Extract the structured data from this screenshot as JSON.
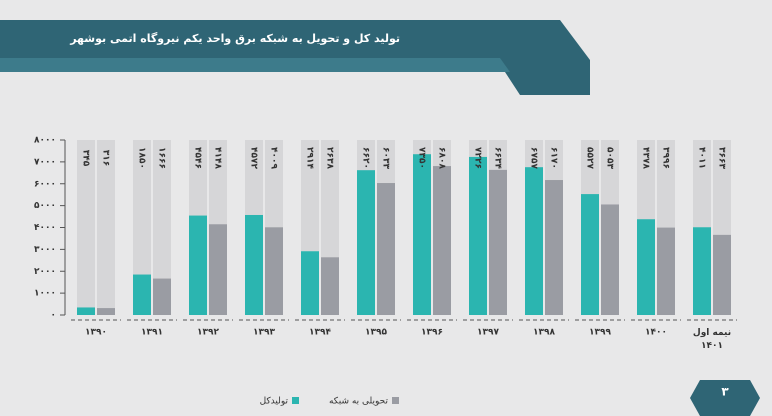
{
  "chart_data": {
    "type": "bar",
    "title": "تولید کل و تحویل به شبکه برق واحد یکم نیروگاه اتمی بوشهر",
    "page_number": "۳",
    "categories": [
      "۱۳۹۰",
      "۱۳۹۱",
      "۱۳۹۲",
      "۱۳۹۳",
      "۱۳۹۴",
      "۱۳۹۵",
      "۱۳۹۶",
      "۱۳۹۷",
      "۱۳۹۸",
      "۱۳۹۹",
      "۱۴۰۰",
      "نیمه اول ۱۴۰۱"
    ],
    "series": [
      {
        "name": "تولیدکل",
        "color": "#2bb5b0",
        "values": [
          345,
          1850,
          4546,
          4572,
          2914,
          6620,
          7350,
          7226,
          6757,
          5527,
          4378,
          4011
        ],
        "value_labels": [
          "۳۴۵",
          "۱۸۵۰",
          "۴۵۴۶",
          "۴۵۷۲",
          "۲۹۱۴",
          "۶۶۲۰",
          "۷۳۵۰",
          "۷۲۲۶",
          "۶۷۵۷",
          "۵۵۲۷",
          "۴۳۷۸",
          "۴۰۱۱"
        ]
      },
      {
        "name": "تحویلی به شبکه",
        "color": "#9a9ca3",
        "values": [
          316,
          1666,
          4148,
          4009,
          2638,
          6033,
          6808,
          6634,
          6170,
          5053,
          3996,
          3663
        ],
        "value_labels": [
          "۳۱۶",
          "۱۶۶۶",
          "۴۱۴۸",
          "۴۰۰۹",
          "۲۶۳۸",
          "۶۰۳۳",
          "۶۸۰۸",
          "۶۶۳۴",
          "۶۱۷۰",
          "۵۰۵۳",
          "۳۹۹۶",
          "۳۶۶۳"
        ]
      }
    ],
    "ylim": [
      0,
      8000
    ],
    "yticks": [
      {
        "value": 0,
        "label": "۰"
      },
      {
        "value": 1000,
        "label": "۱۰۰۰"
      },
      {
        "value": 2000,
        "label": "۲۰۰۰"
      },
      {
        "value": 3000,
        "label": "۳۰۰۰"
      },
      {
        "value": 4000,
        "label": "۴۰۰۰"
      },
      {
        "value": 5000,
        "label": "۵۰۰۰"
      },
      {
        "value": 6000,
        "label": "۶۰۰۰"
      },
      {
        "value": 7000,
        "label": "۷۰۰۰"
      },
      {
        "value": 8000,
        "label": "۸۰۰۰"
      }
    ]
  }
}
